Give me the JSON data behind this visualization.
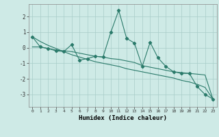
{
  "x": [
    0,
    1,
    2,
    3,
    4,
    5,
    6,
    7,
    8,
    9,
    10,
    11,
    12,
    13,
    14,
    15,
    16,
    17,
    18,
    19,
    20,
    21,
    22,
    23
  ],
  "y_line": [
    0.7,
    0.05,
    -0.05,
    -0.2,
    -0.25,
    0.2,
    -0.8,
    -0.7,
    -0.55,
    -0.6,
    1.0,
    2.4,
    0.6,
    0.3,
    -1.2,
    0.35,
    -0.65,
    -1.2,
    -1.55,
    -1.65,
    -1.65,
    -2.5,
    -3.0,
    -3.3
  ],
  "y_trend1": [
    0.05,
    0.05,
    -0.05,
    -0.15,
    -0.2,
    -0.25,
    -0.35,
    -0.45,
    -0.55,
    -0.6,
    -0.7,
    -0.75,
    -0.85,
    -0.95,
    -1.15,
    -1.25,
    -1.35,
    -1.45,
    -1.55,
    -1.6,
    -1.65,
    -1.7,
    -1.75,
    -3.3
  ],
  "y_trend2": [
    0.7,
    0.4,
    0.15,
    -0.05,
    -0.25,
    -0.45,
    -0.6,
    -0.75,
    -0.9,
    -1.0,
    -1.1,
    -1.2,
    -1.35,
    -1.45,
    -1.55,
    -1.65,
    -1.75,
    -1.85,
    -1.95,
    -2.1,
    -2.2,
    -2.35,
    -2.55,
    -3.3
  ],
  "color": "#2a7a6a",
  "bg_color": "#ceeae6",
  "grid_color": "#a8cdc8",
  "xlabel": "Humidex (Indice chaleur)",
  "ylim": [
    -3.8,
    2.8
  ],
  "xlim": [
    -0.5,
    23.5
  ],
  "yticks": [
    -3,
    -2,
    -1,
    0,
    1,
    2
  ],
  "xticks": [
    0,
    1,
    2,
    3,
    4,
    5,
    6,
    7,
    8,
    9,
    10,
    11,
    12,
    13,
    14,
    15,
    16,
    17,
    18,
    19,
    20,
    21,
    22,
    23
  ]
}
